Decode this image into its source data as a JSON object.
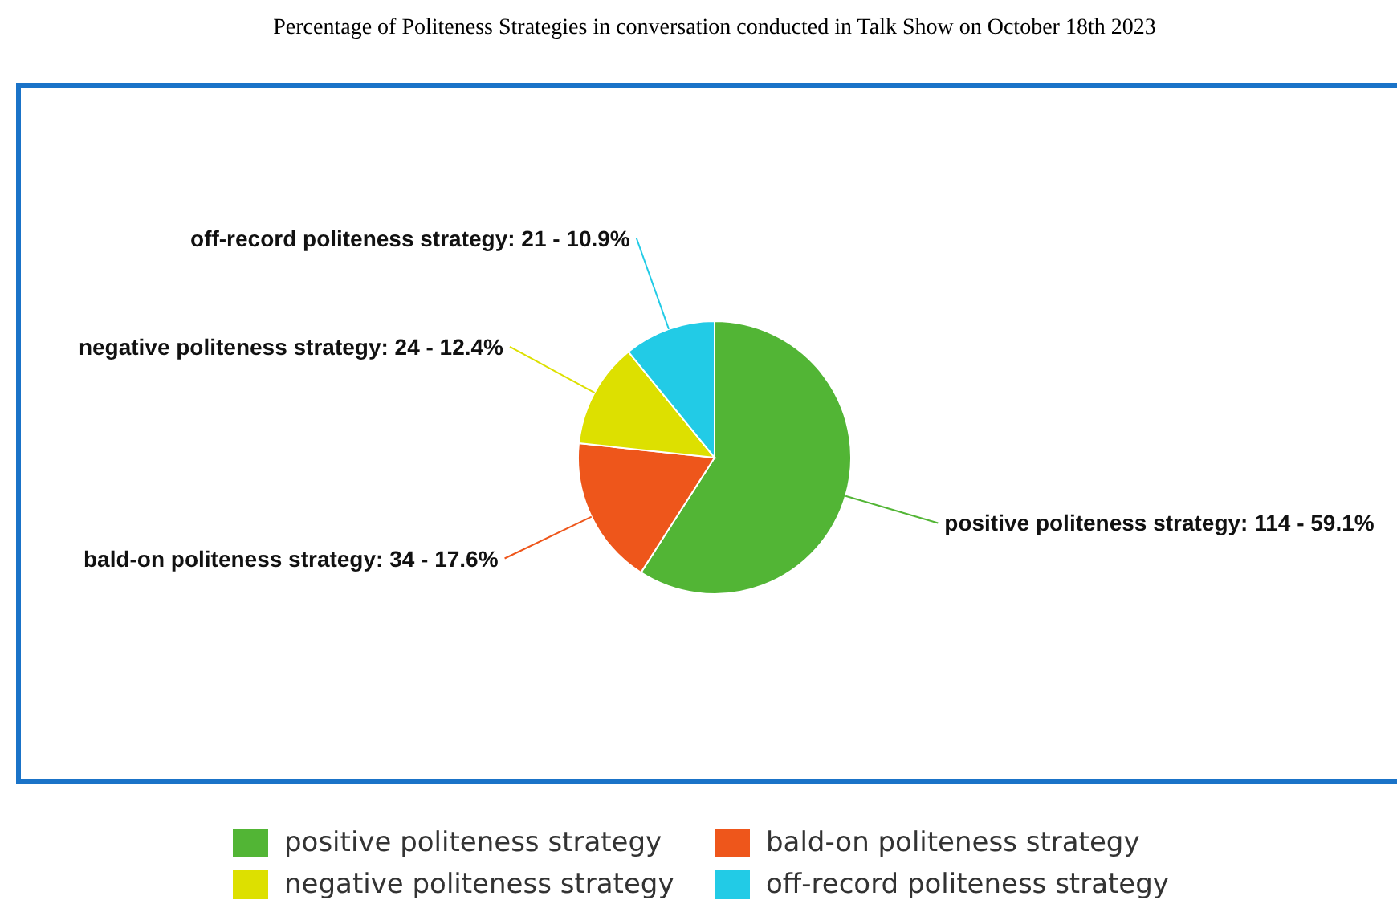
{
  "chart_data": {
    "type": "pie",
    "title": "Percentage of Politeness Strategies in conversation conducted in Talk Show on October 18th 2023",
    "categories": [
      "positive politeness strategy",
      "bald-on politeness strategy",
      "negative politeness strategy",
      "off-record politeness strategy"
    ],
    "values": [
      114,
      34,
      24,
      21
    ],
    "colors": [
      "#52b535",
      "#ee561b",
      "#dde000",
      "#22cbe6"
    ],
    "value_labels": [
      "positive politeness strategy: 114 - 59.1%",
      "bald-on politeness strategy: 34 - 17.6%",
      "negative politeness strategy: 24 - 12.4%",
      "off-record politeness strategy: 21 - 10.9%"
    ],
    "legend": "bottom"
  }
}
